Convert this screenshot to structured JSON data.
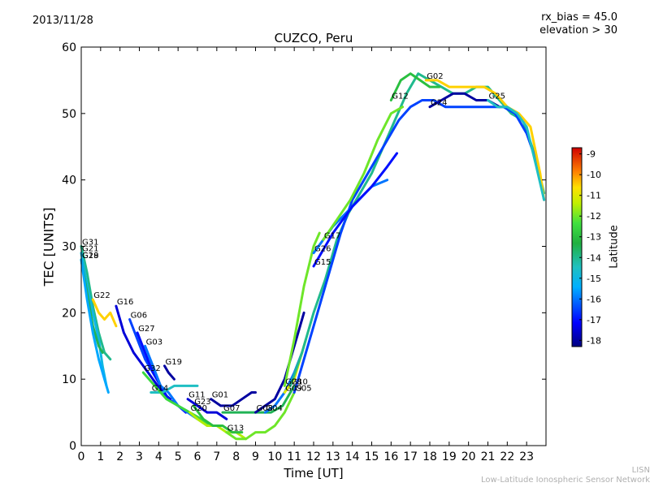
{
  "header": {
    "date": "2013/11/28",
    "param_lines": [
      "rx_bias = 45.0",
      "elevation > 30"
    ]
  },
  "footer": {
    "lines": [
      "LISN",
      "Low-Latitude Ionospheric Sensor Network"
    ]
  },
  "chart_data": {
    "type": "line",
    "title": "CUZCO, Peru",
    "xlabel": "Time [UT]",
    "ylabel": "TEC [UNITS]",
    "xlim": [
      0,
      24
    ],
    "ylim": [
      0,
      60
    ],
    "xticks": [
      0,
      1,
      2,
      3,
      4,
      5,
      6,
      7,
      8,
      9,
      10,
      11,
      12,
      13,
      14,
      15,
      16,
      17,
      18,
      19,
      20,
      21,
      22,
      23
    ],
    "yticks": [
      0,
      10,
      20,
      30,
      40,
      50,
      60
    ],
    "grid": false,
    "colorbar": {
      "label": "Latitude",
      "range": [
        -18.3,
        -8.7
      ],
      "ticks": [
        -9,
        -10,
        -11,
        -12,
        -13,
        -14,
        -15,
        -16,
        -17,
        -18
      ]
    },
    "series": [
      {
        "name": "G31",
        "lat": -14.0,
        "x": [
          0.0,
          0.3,
          0.6,
          0.9,
          1.2,
          1.5
        ],
        "y": [
          30,
          26,
          21,
          17,
          14,
          13
        ]
      },
      {
        "name": "G21",
        "lat": -15.0,
        "x": [
          0.0,
          0.3,
          0.6,
          0.9,
          1.1,
          1.3
        ],
        "y": [
          29,
          24,
          20,
          16,
          12,
          9
        ]
      },
      {
        "name": "G29",
        "lat": -13.5,
        "x": [
          0.0,
          0.3,
          0.6,
          0.9,
          1.1
        ],
        "y": [
          28,
          23,
          18,
          15,
          14
        ]
      },
      {
        "name": "G18",
        "lat": -15.5,
        "x": [
          0.0,
          0.3,
          0.6,
          0.9,
          1.2,
          1.4
        ],
        "y": [
          28,
          22,
          17,
          13,
          10,
          8
        ]
      },
      {
        "name": "G22",
        "lat": -10.5,
        "x": [
          0.6,
          0.9,
          1.2,
          1.5,
          1.8
        ],
        "y": [
          22,
          20,
          19,
          20,
          18
        ]
      },
      {
        "name": "G16",
        "lat": -17.5,
        "x": [
          1.8,
          2.2,
          2.7,
          3.2,
          3.7,
          4.2,
          4.6
        ],
        "y": [
          21,
          17,
          14,
          12,
          10,
          8,
          7
        ]
      },
      {
        "name": "G06",
        "lat": -16.5,
        "x": [
          2.5,
          2.9,
          3.3,
          3.7,
          4.1,
          4.5,
          5.0
        ],
        "y": [
          19,
          16,
          13,
          11,
          9,
          7,
          6
        ]
      },
      {
        "name": "G27",
        "lat": -17.0,
        "x": [
          2.9,
          3.3,
          3.7,
          4.1,
          4.5,
          5.0,
          5.4
        ],
        "y": [
          17,
          14,
          11,
          9,
          7,
          6,
          5
        ]
      },
      {
        "name": "G03",
        "lat": -16.0,
        "x": [
          3.3,
          3.7,
          4.1,
          4.5,
          5.0,
          5.5,
          6.0
        ],
        "y": [
          15,
          12,
          9,
          8,
          6,
          5,
          4
        ]
      },
      {
        "name": "G19",
        "lat": -18.0,
        "x": [
          4.3,
          4.5,
          4.8
        ],
        "y": [
          12,
          11,
          10
        ]
      },
      {
        "name": "G14",
        "lat": -14.5,
        "x": [
          3.6,
          4.2,
          4.8,
          5.4,
          6.0
        ],
        "y": [
          8,
          8,
          9,
          9,
          9
        ]
      },
      {
        "name": "G32",
        "lat": -12.5,
        "x": [
          3.2,
          3.8,
          4.4,
          5.0,
          5.6,
          6.2,
          6.6
        ],
        "y": [
          11,
          9,
          7,
          6,
          5,
          4,
          3
        ]
      },
      {
        "name": "G11",
        "lat": -17.5,
        "x": [
          5.5,
          6.0,
          6.5,
          7.0,
          7.5
        ],
        "y": [
          7,
          6,
          5,
          5,
          4
        ]
      },
      {
        "name": "G01",
        "lat": -18.0,
        "x": [
          6.7,
          7.2,
          7.8,
          8.3,
          8.8,
          9.0
        ],
        "y": [
          7,
          6,
          6,
          7,
          8,
          8
        ]
      },
      {
        "name": "G20",
        "lat": -11.5,
        "x": [
          5.6,
          6.0,
          6.5,
          7.0,
          7.5,
          8.0,
          8.5
        ],
        "y": [
          5,
          4,
          3,
          3,
          2,
          2,
          1
        ]
      },
      {
        "name": "G23",
        "lat": -13.0,
        "x": [
          5.8,
          6.3,
          6.8,
          7.3,
          7.8,
          8.3
        ],
        "y": [
          6,
          4,
          3,
          3,
          2,
          2
        ]
      },
      {
        "name": "G13",
        "lat": -12.0,
        "x": [
          7.5,
          8.0,
          8.5,
          9.0,
          9.5,
          10.0,
          10.5,
          11.0
        ],
        "y": [
          2,
          1,
          1,
          2,
          2,
          3,
          5,
          8
        ]
      },
      {
        "name": "G07",
        "lat": -13.5,
        "x": [
          7.3,
          8.0,
          8.6,
          9.2,
          9.8,
          10.4,
          11.0
        ],
        "y": [
          5,
          5,
          5,
          5,
          5,
          6,
          9
        ]
      },
      {
        "name": "G08",
        "lat": -18.0,
        "x": [
          9.0,
          9.5,
          10.0,
          10.5,
          11.0,
          11.5
        ],
        "y": [
          5,
          6,
          7,
          10,
          15,
          20
        ]
      },
      {
        "name": "G04",
        "lat": -16.0,
        "x": [
          9.5,
          10.0,
          10.5,
          11.0,
          11.4
        ],
        "y": [
          5,
          6,
          8,
          11,
          14
        ]
      },
      {
        "name": "G09",
        "lat": -11.0,
        "x": [
          10.5,
          11.0,
          11.3,
          11.6
        ],
        "y": [
          8,
          10,
          13,
          16
        ]
      },
      {
        "name": "G10",
        "lat": -14.0,
        "x": [
          10.8,
          11.4,
          12.0,
          12.6,
          13.2,
          13.8,
          14.4,
          15.0,
          15.6,
          16.2,
          16.8,
          17.4,
          18.0,
          18.6,
          19.2,
          19.8,
          20.4,
          21.0,
          21.6,
          22.2,
          22.8,
          23.4,
          23.9
        ],
        "y": [
          9,
          14,
          20,
          25,
          31,
          35,
          38,
          41,
          45,
          49,
          53,
          56,
          55,
          54,
          53,
          53,
          54,
          54,
          52,
          50,
          49,
          44,
          38
        ]
      },
      {
        "name": "G28",
        "lat": -12.0,
        "x": [
          10.5,
          11.0,
          11.5,
          12.0,
          12.3
        ],
        "y": [
          9,
          16,
          24,
          30,
          32
        ]
      },
      {
        "name": "G05",
        "lat": -16.5,
        "x": [
          11.0,
          11.6,
          12.2,
          12.8,
          13.4,
          14.0,
          14.6,
          15.2,
          15.8,
          16.4,
          17.0,
          17.6,
          18.2,
          18.8,
          19.4,
          20.0,
          20.6,
          21.2,
          21.8,
          22.4,
          23.0,
          23.6,
          23.9
        ],
        "y": [
          8,
          14,
          20,
          26,
          32,
          37,
          40,
          43,
          46,
          49,
          51,
          52,
          52,
          51,
          51,
          51,
          51,
          51,
          51,
          50,
          47,
          42,
          37
        ]
      },
      {
        "name": "G26",
        "lat": -16.0,
        "x": [
          12.0,
          13.0,
          14.0,
          15.0,
          15.8
        ],
        "y": [
          29,
          33,
          36,
          39,
          40
        ]
      },
      {
        "name": "G17",
        "lat": -12.0,
        "x": [
          12.5,
          13.2,
          13.9,
          14.6,
          15.3,
          16.0,
          16.6
        ],
        "y": [
          31,
          34,
          37,
          41,
          46,
          50,
          51
        ]
      },
      {
        "name": "G15",
        "lat": -17.0,
        "x": [
          12.0,
          13.0,
          14.0,
          15.0,
          15.8,
          16.3
        ],
        "y": [
          27,
          32,
          36,
          39,
          42,
          44
        ]
      },
      {
        "name": "G12",
        "lat": -13.0,
        "x": [
          16.0,
          16.5,
          17.0,
          17.5,
          18.0,
          18.5
        ],
        "y": [
          52,
          55,
          56,
          55,
          54,
          54
        ]
      },
      {
        "name": "G02",
        "lat": -10.5,
        "x": [
          17.8,
          18.4,
          19.0,
          19.6,
          20.2,
          20.8,
          21.4,
          22.0,
          22.6,
          23.2,
          23.7,
          23.9
        ],
        "y": [
          55,
          55,
          54,
          54,
          54,
          54,
          53,
          51,
          50,
          48,
          41,
          37
        ]
      },
      {
        "name": "G24",
        "lat": -18.0,
        "x": [
          18.0,
          18.6,
          19.2,
          19.8,
          20.4,
          21.0,
          21.6
        ],
        "y": [
          51,
          52,
          53,
          53,
          52,
          52,
          51
        ]
      },
      {
        "name": "G25",
        "lat": -14.5,
        "x": [
          21.0,
          21.5,
          22.0,
          22.5,
          23.0,
          23.5,
          23.9
        ],
        "y": [
          52,
          51,
          51,
          50,
          48,
          42,
          37
        ]
      }
    ]
  }
}
